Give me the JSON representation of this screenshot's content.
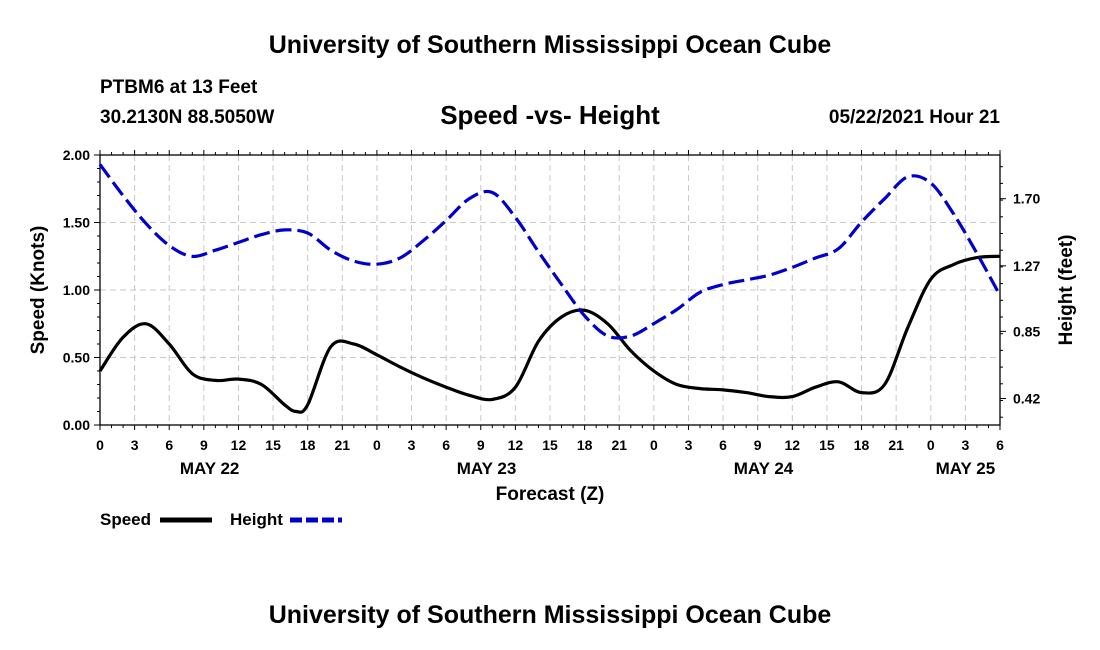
{
  "header": {
    "top_title": "University of Southern Mississippi Ocean Cube",
    "station": "PTBM6 at 13 Feet",
    "coords": "30.2130N  88.5050W",
    "subtitle": "Speed -vs- Height",
    "timestamp": "05/22/2021 Hour 21",
    "bottom_title": "University of Southern Mississippi Ocean Cube"
  },
  "legend": {
    "speed_label": "Speed",
    "height_label": "Height"
  },
  "colors": {
    "speed": "#000000",
    "height": "#0000cc",
    "grid": "#c8c8c8"
  },
  "chart_data": {
    "type": "line",
    "xlabel": "Forecast (Z)",
    "ylabel_left": "Speed (Knots)",
    "ylabel_right": "Height (feet)",
    "x_range_hours": [
      0,
      78
    ],
    "x_tick_labels": [
      "0",
      "3",
      "6",
      "9",
      "12",
      "15",
      "18",
      "21",
      "0",
      "3",
      "6",
      "9",
      "12",
      "15",
      "18",
      "21",
      "0",
      "3",
      "6",
      "9",
      "12",
      "15",
      "18",
      "21",
      "0",
      "3",
      "6"
    ],
    "date_labels": [
      {
        "label": "MAY 22",
        "hour": 9.5
      },
      {
        "label": "MAY 23",
        "hour": 33.5
      },
      {
        "label": "MAY 24",
        "hour": 57.5
      },
      {
        "label": "MAY 25",
        "hour": 75
      }
    ],
    "y_left": {
      "range": [
        0,
        2.0
      ],
      "ticks": [
        "0.00",
        "0.50",
        "1.00",
        "1.50",
        "2.00"
      ]
    },
    "y_right": {
      "range": [
        0.25,
        1.98
      ],
      "ticks": [
        "0.42",
        "0.85",
        "1.27",
        "1.70"
      ]
    },
    "series": [
      {
        "name": "Speed",
        "axis": "left",
        "x": [
          0,
          2,
          4,
          6,
          8,
          10,
          12,
          14,
          16,
          17,
          18,
          20,
          22,
          24,
          26,
          28,
          30,
          32,
          34,
          36,
          38,
          40,
          42,
          44,
          46,
          48,
          50,
          52,
          54,
          56,
          58,
          60,
          62,
          64,
          66,
          68,
          70,
          72,
          74,
          76,
          78
        ],
        "values": [
          0.4,
          0.65,
          0.75,
          0.6,
          0.38,
          0.33,
          0.34,
          0.3,
          0.15,
          0.1,
          0.15,
          0.58,
          0.6,
          0.52,
          0.43,
          0.35,
          0.28,
          0.22,
          0.19,
          0.28,
          0.62,
          0.8,
          0.85,
          0.75,
          0.55,
          0.4,
          0.3,
          0.27,
          0.26,
          0.24,
          0.21,
          0.21,
          0.28,
          0.32,
          0.24,
          0.3,
          0.72,
          1.08,
          1.19,
          1.24,
          1.25
        ]
      },
      {
        "name": "Height",
        "axis": "right",
        "x": [
          0,
          2,
          4,
          6,
          8,
          10,
          12,
          14,
          16,
          18,
          20,
          22,
          24,
          26,
          28,
          30,
          32,
          34,
          36,
          38,
          40,
          42,
          44,
          46,
          48,
          50,
          52,
          54,
          56,
          58,
          60,
          62,
          64,
          66,
          68,
          70,
          72,
          74,
          76,
          78
        ],
        "values": [
          1.92,
          1.72,
          1.54,
          1.4,
          1.33,
          1.37,
          1.42,
          1.47,
          1.5,
          1.48,
          1.37,
          1.3,
          1.28,
          1.32,
          1.43,
          1.56,
          1.7,
          1.74,
          1.58,
          1.36,
          1.15,
          0.95,
          0.82,
          0.82,
          0.9,
          0.99,
          1.1,
          1.15,
          1.18,
          1.21,
          1.26,
          1.32,
          1.38,
          1.55,
          1.7,
          1.84,
          1.8,
          1.6,
          1.35,
          1.08
        ]
      }
    ]
  }
}
